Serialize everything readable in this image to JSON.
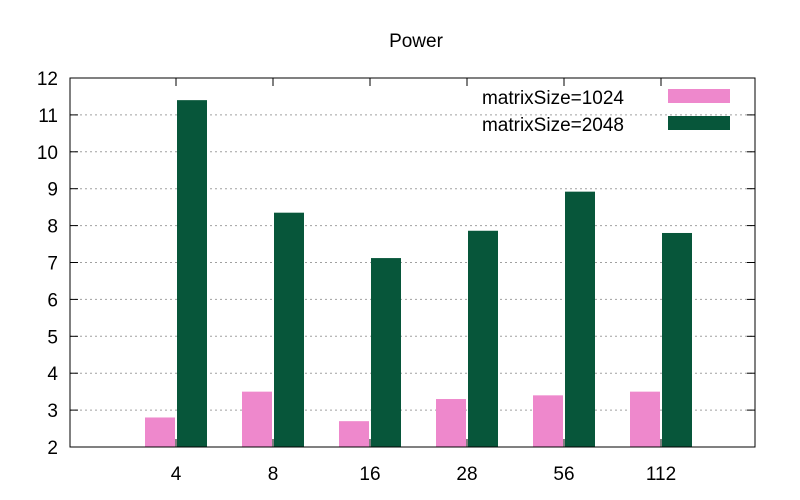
{
  "chart_data": {
    "type": "bar",
    "title": "Power",
    "xlabel": "",
    "ylabel": "",
    "categories": [
      "4",
      "8",
      "16",
      "28",
      "56",
      "112"
    ],
    "ylim": [
      2,
      12
    ],
    "yticks": [
      "2",
      "3",
      "4",
      "5",
      "6",
      "7",
      "8",
      "9",
      "10",
      "11",
      "12"
    ],
    "grid": true,
    "legend_position": "top-right",
    "series": [
      {
        "name": "matrixSize=1024",
        "color": "#ee88cc",
        "values": [
          2.8,
          3.5,
          2.7,
          3.3,
          3.4,
          3.5
        ]
      },
      {
        "name": "matrixSize=2048",
        "color": "#07563a",
        "values": [
          11.4,
          8.35,
          7.12,
          7.86,
          8.92,
          7.8
        ]
      }
    ]
  }
}
